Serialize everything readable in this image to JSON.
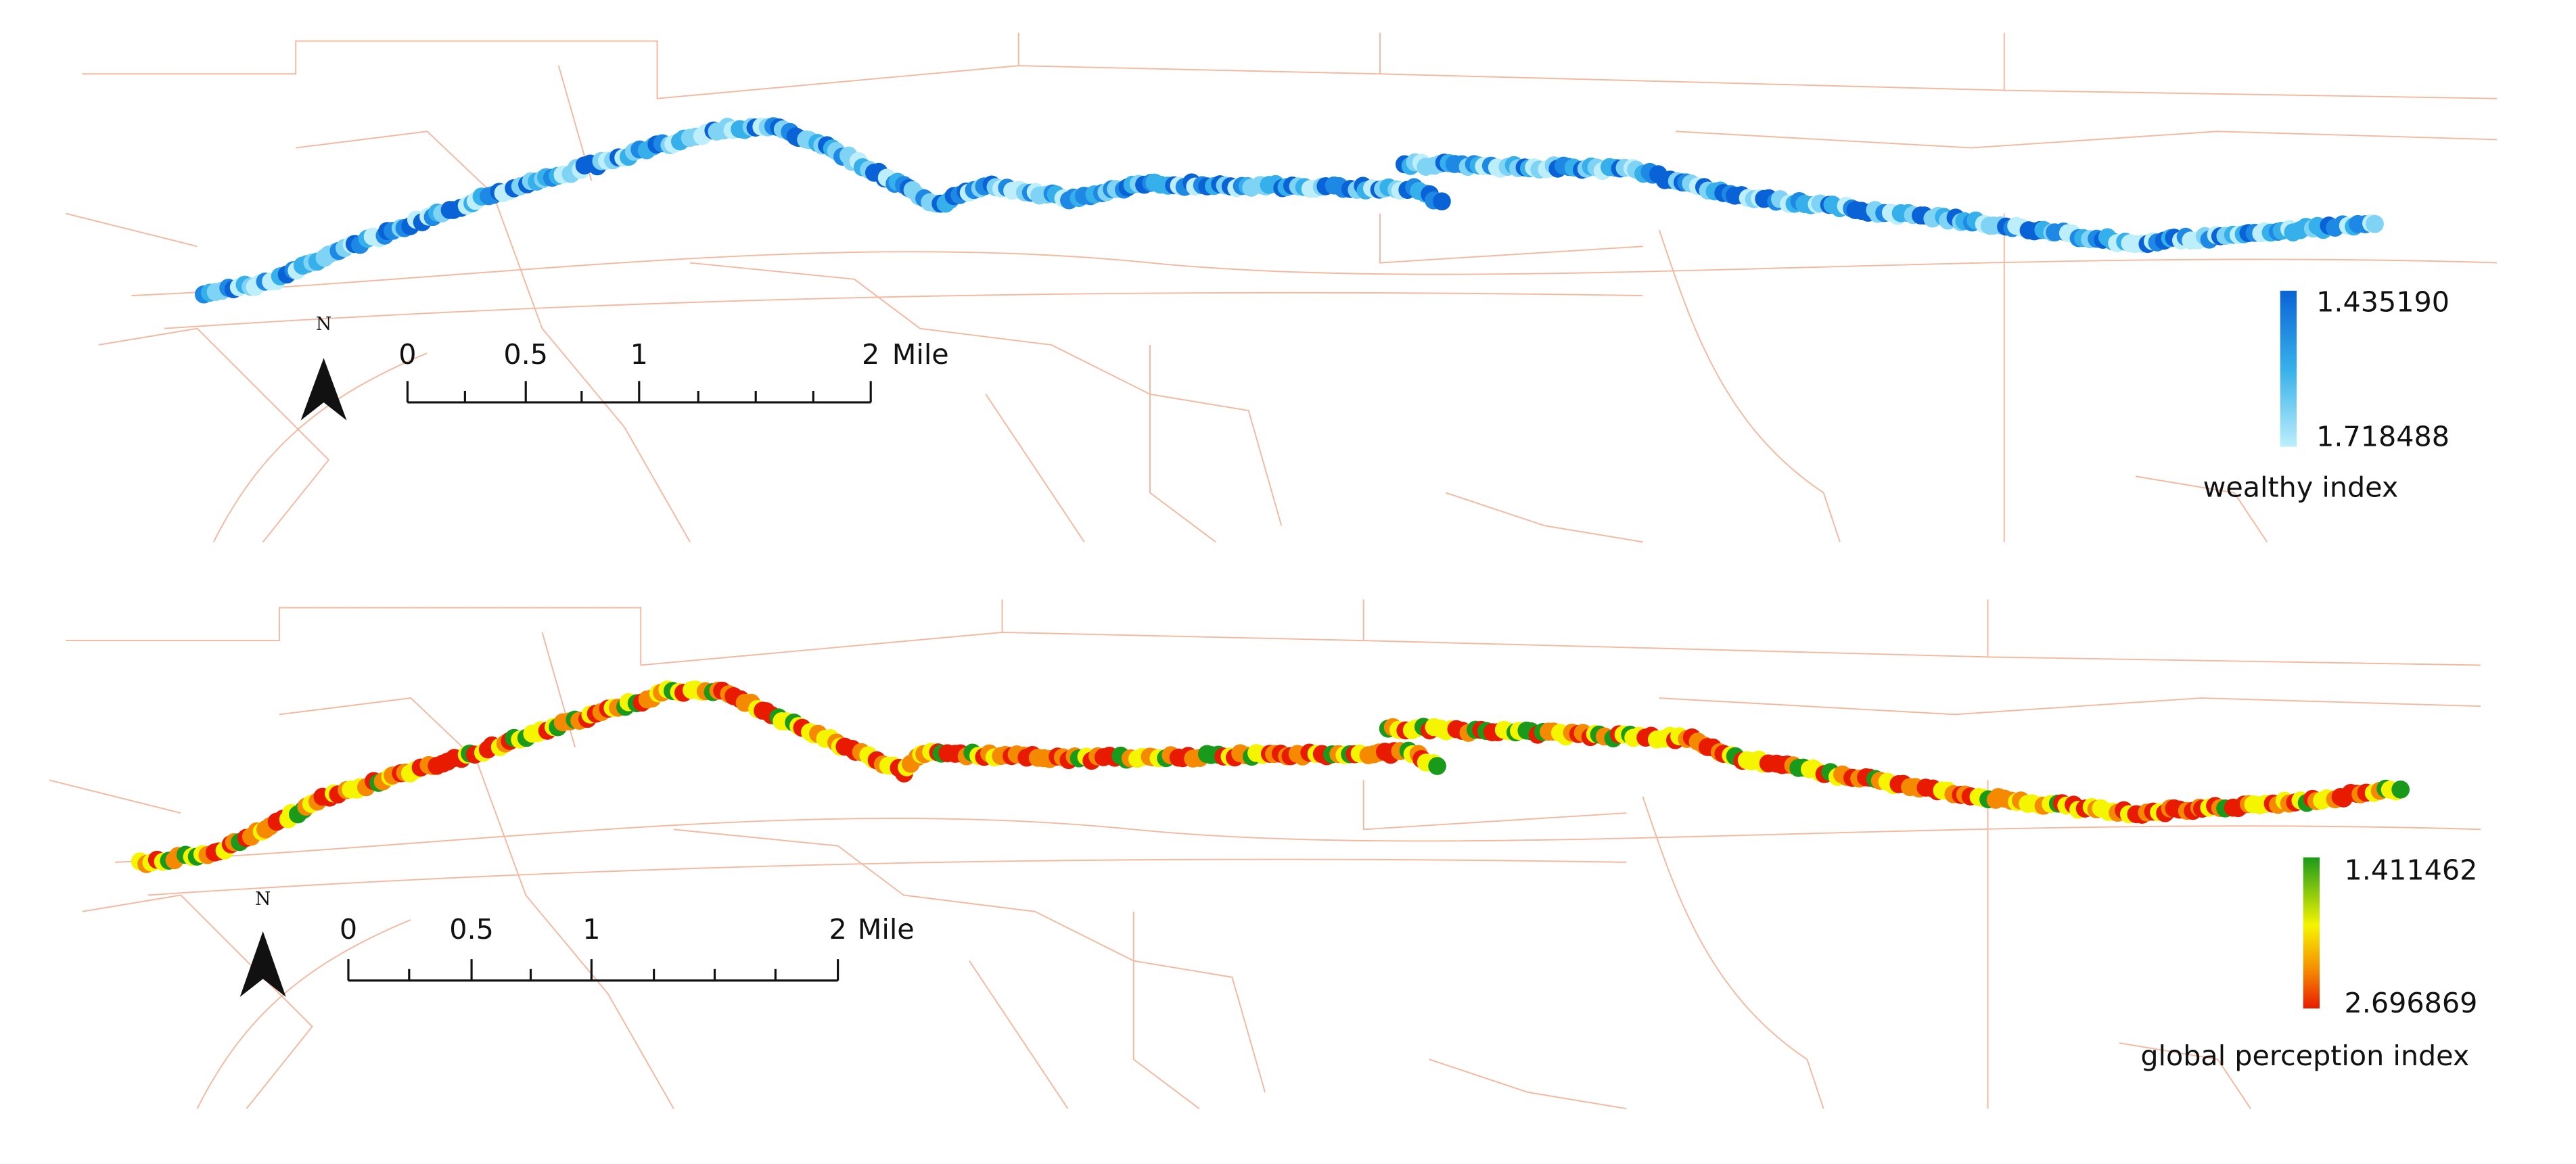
{
  "panels": [
    {
      "north": "N",
      "scale_bar": {
        "labels": [
          "0",
          "0.5",
          "1",
          "2"
        ],
        "unit": "Mile"
      },
      "legend": {
        "top_label": "1.435190",
        "bottom_label": "1.718488",
        "title": "wealthy index"
      }
    },
    {
      "north": "N",
      "scale_bar": {
        "labels": [
          "0",
          "0.5",
          "1",
          "2"
        ],
        "unit": "Mile"
      },
      "legend": {
        "top_label": "1.411462",
        "bottom_label": "2.696869",
        "title": "global perception index"
      }
    }
  ]
}
